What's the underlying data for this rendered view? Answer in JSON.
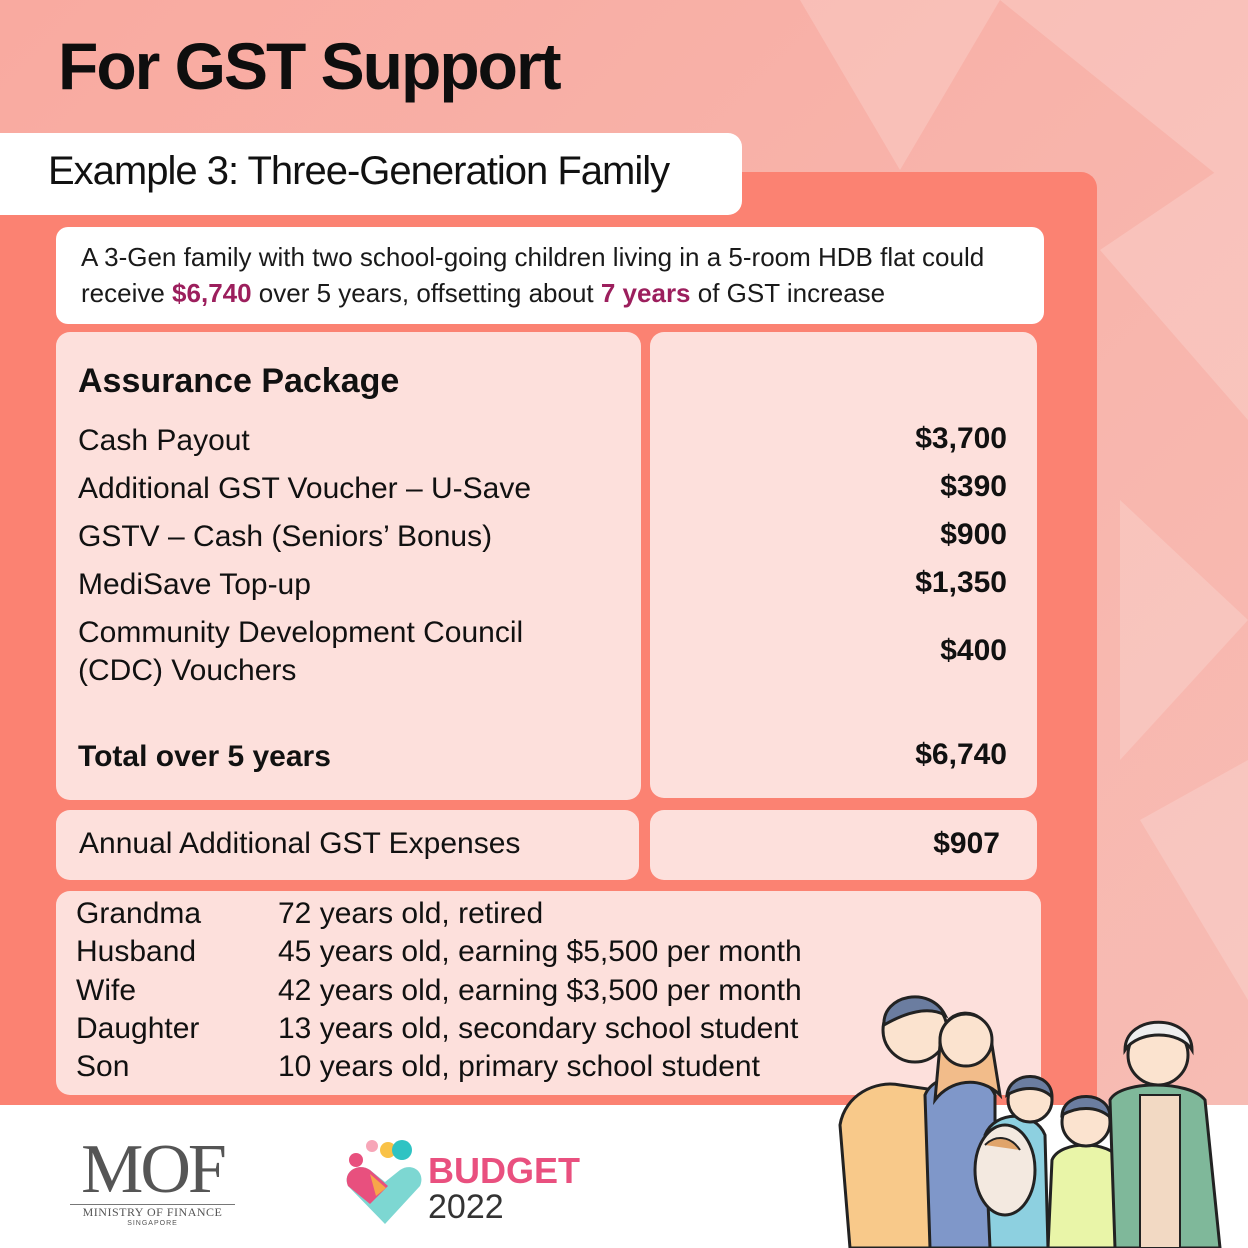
{
  "title": "For GST Support",
  "example_title": "Example 3: Three-Generation Family",
  "intro": {
    "before": "A 3-Gen family with two school-going children living in a 5-room HDB flat could receive ",
    "amount": "$6,740",
    "middle": " over 5 years, offsetting about ",
    "years": "7 years",
    "after": " of GST increase"
  },
  "assurance": {
    "heading": "Assurance Package",
    "items": [
      {
        "label": "Cash Payout",
        "value": "$3,700"
      },
      {
        "label": "Additional GST Voucher – U-Save",
        "value": "$390"
      },
      {
        "label": "GSTV – Cash (Seniors’ Bonus)",
        "value": "$900"
      },
      {
        "label": "MediSave Top-up",
        "value": "$1,350"
      },
      {
        "label": "Community Development Council (CDC) Vouchers",
        "value": "$400"
      }
    ],
    "total_label": "Total over 5 years",
    "total_value": "$6,740"
  },
  "annual": {
    "label": "Annual Additional GST Expenses",
    "value": "$907"
  },
  "family": [
    {
      "name": "Grandma",
      "desc": "72 years old, retired"
    },
    {
      "name": "Husband",
      "desc": "45 years old, earning $5,500 per month"
    },
    {
      "name": "Wife",
      "desc": "42 years old, earning $3,500 per month"
    },
    {
      "name": "Daughter",
      "desc": "13 years old, secondary school student"
    },
    {
      "name": "Son",
      "desc": "10 years old, primary school student"
    }
  ],
  "footer": {
    "mof_logo_text": "MOF",
    "mof_sub": "MINISTRY OF FINANCE",
    "mof_country": "SINGAPORE",
    "budget_label": "BUDGET",
    "budget_year": "2022"
  },
  "colors": {
    "accent": "#9c1f5d",
    "panel": "#fb8272",
    "card": "#fde0dc",
    "budget": "#e9507f"
  }
}
